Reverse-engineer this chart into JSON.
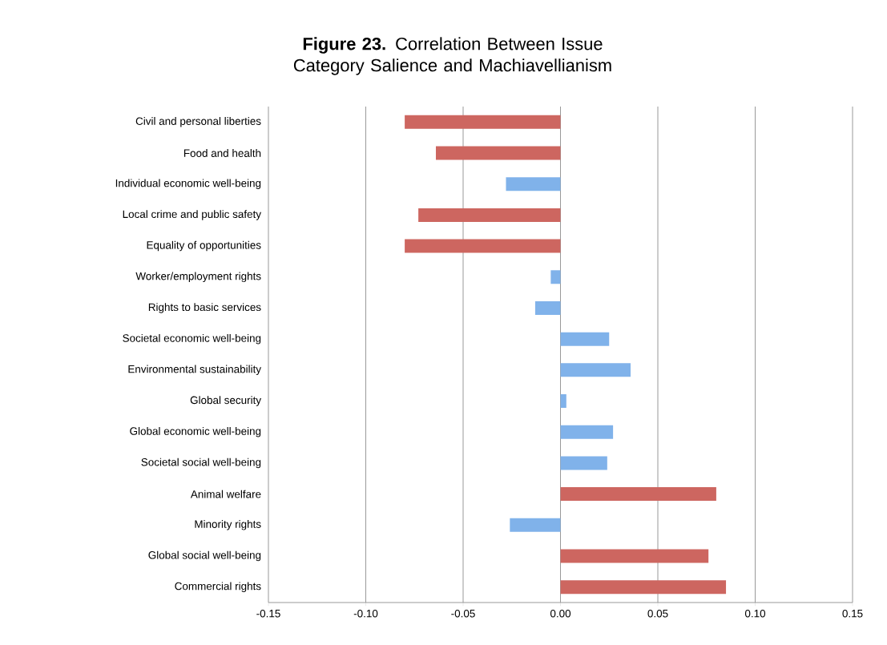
{
  "chart_data": {
    "type": "bar",
    "orientation": "horizontal",
    "title": "**Figure 23.** Correlation Between Issue Category Salience and Machiavellianism",
    "categories": [
      "Civil and personal liberties",
      "Food and health",
      "Individual economic well-being",
      "Local crime and public safety",
      "Equality of opportunities",
      "Worker/employment rights",
      "Rights to basic services",
      "Societal economic well-being",
      "Environmental sustainability",
      "Global security",
      "Global economic well-being",
      "Societal social well-being",
      "Animal welfare",
      "Minority rights",
      "Global social well-being",
      "Commercial rights"
    ],
    "values": [
      -0.08,
      -0.064,
      -0.028,
      -0.073,
      -0.08,
      -0.005,
      -0.013,
      0.025,
      0.036,
      0.003,
      0.027,
      0.024,
      0.08,
      -0.026,
      0.076,
      0.085
    ],
    "colors": [
      "#cd6660",
      "#cd6660",
      "#80b2ea",
      "#cd6660",
      "#cd6660",
      "#80b2ea",
      "#80b2ea",
      "#80b2ea",
      "#80b2ea",
      "#80b2ea",
      "#80b2ea",
      "#80b2ea",
      "#cd6660",
      "#80b2ea",
      "#cd6660",
      "#cd6660"
    ],
    "xlim": [
      -0.15,
      0.15
    ],
    "xticks": [
      {
        "value": -0.15,
        "label": "-0.15"
      },
      {
        "value": -0.1,
        "label": "-0.10"
      },
      {
        "value": -0.05,
        "label": "-0.05"
      },
      {
        "value": 0,
        "label": "0.00"
      },
      {
        "value": 0.05,
        "label": "0.05"
      },
      {
        "value": 0.1,
        "label": "0.10"
      },
      {
        "value": 0.15,
        "label": "0.15"
      }
    ],
    "grid": "x"
  }
}
